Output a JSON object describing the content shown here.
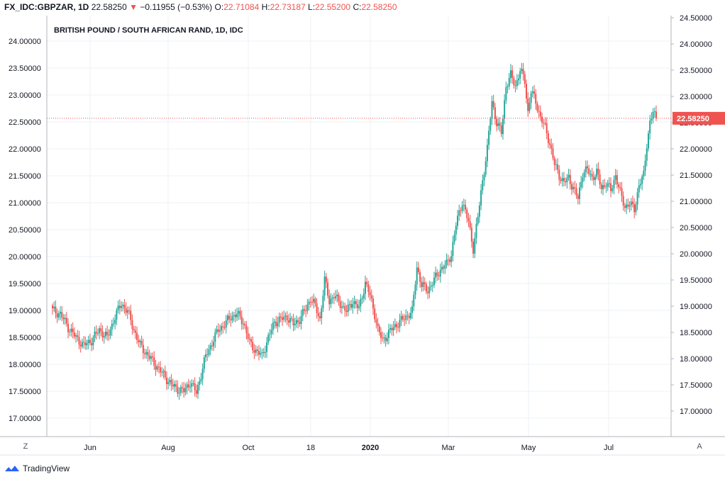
{
  "header": {
    "symbol": "FX_IDC:GBPZAR, 1D",
    "last": "22.58250",
    "change_arrow": "▼",
    "change": "−0.11955 (−0.53%)",
    "o_label": "O:",
    "o_value": "22.71084",
    "h_label": "H:",
    "h_value": "22.73187",
    "l_label": "L:",
    "l_value": "22.55200",
    "c_label": "C:",
    "c_value": "22.58250"
  },
  "brand": "TradingView",
  "buttons": {
    "left": "Z",
    "right": "A"
  },
  "colors": {
    "up": "#26a69a",
    "down": "#ef5350",
    "grid": "#e9ecf1",
    "axis_text": "#131722"
  },
  "chart_data": {
    "type": "candlestick",
    "title": "BRITISH POUND / SOUTH AFRICAN RAND, 1D, IDC",
    "last_price_label": "22.58250",
    "x_ticks": [
      "Jun",
      "Aug",
      "Oct",
      "18",
      "2020",
      "Mar",
      "May",
      "Jul"
    ],
    "left_axis": {
      "ticks": [
        "17.00000",
        "17.50000",
        "18.00000",
        "18.50000",
        "19.00000",
        "19.50000",
        "20.00000",
        "20.50000",
        "21.00000",
        "21.50000",
        "22.00000",
        "22.50000",
        "23.00000",
        "23.50000",
        "24.00000"
      ],
      "range": [
        16.6,
        24.4
      ]
    },
    "right_axis": {
      "ticks": [
        "17.00000",
        "17.50000",
        "18.00000",
        "18.50000",
        "19.00000",
        "19.50000",
        "20.00000",
        "20.50000",
        "21.00000",
        "21.50000",
        "22.00000",
        "22.50000",
        "23.00000",
        "23.50000",
        "24.00000",
        "24.50000"
      ],
      "range": [
        16.45,
        24.55
      ]
    },
    "close_series": [
      [
        0,
        18.92
      ],
      [
        5,
        18.85
      ],
      [
        10,
        18.6
      ],
      [
        15,
        18.4
      ],
      [
        20,
        18.25
      ],
      [
        25,
        18.35
      ],
      [
        30,
        18.55
      ],
      [
        35,
        18.4
      ],
      [
        40,
        18.8
      ],
      [
        44,
        19.05
      ],
      [
        48,
        18.9
      ],
      [
        52,
        18.55
      ],
      [
        56,
        18.25
      ],
      [
        60,
        18.1
      ],
      [
        64,
        17.95
      ],
      [
        68,
        17.8
      ],
      [
        72,
        17.65
      ],
      [
        76,
        17.5
      ],
      [
        80,
        17.42
      ],
      [
        84,
        17.38
      ],
      [
        88,
        17.55
      ],
      [
        92,
        17.35
      ],
      [
        95,
        17.7
      ],
      [
        98,
        18.05
      ],
      [
        102,
        18.3
      ],
      [
        106,
        18.55
      ],
      [
        110,
        18.65
      ],
      [
        114,
        18.8
      ],
      [
        118,
        18.85
      ],
      [
        122,
        18.7
      ],
      [
        126,
        18.3
      ],
      [
        130,
        18.15
      ],
      [
        134,
        18.05
      ],
      [
        138,
        18.4
      ],
      [
        142,
        18.7
      ],
      [
        146,
        18.75
      ],
      [
        150,
        18.8
      ],
      [
        154,
        18.65
      ],
      [
        158,
        18.75
      ],
      [
        162,
        18.95
      ],
      [
        165,
        19.15
      ],
      [
        168,
        19.0
      ],
      [
        171,
        18.75
      ],
      [
        174,
        19.5
      ],
      [
        177,
        19.1
      ],
      [
        180,
        19.2
      ],
      [
        184,
        19.05
      ],
      [
        188,
        18.9
      ],
      [
        192,
        19.1
      ],
      [
        196,
        18.95
      ],
      [
        200,
        19.45
      ],
      [
        203,
        19.2
      ],
      [
        206,
        18.85
      ],
      [
        208,
        18.55
      ],
      [
        211,
        18.35
      ],
      [
        214,
        18.45
      ],
      [
        218,
        18.6
      ],
      [
        222,
        18.7
      ],
      [
        226,
        18.8
      ],
      [
        230,
        18.9
      ],
      [
        233,
        19.75
      ],
      [
        236,
        19.4
      ],
      [
        240,
        19.3
      ],
      [
        244,
        19.5
      ],
      [
        248,
        19.7
      ],
      [
        252,
        19.8
      ],
      [
        255,
        20.0
      ],
      [
        258,
        20.55
      ],
      [
        262,
        21.0
      ],
      [
        266,
        20.6
      ],
      [
        269,
        20.1
      ],
      [
        272,
        20.7
      ],
      [
        275,
        21.4
      ],
      [
        278,
        22.0
      ],
      [
        281,
        22.9
      ],
      [
        284,
        22.5
      ],
      [
        287,
        22.3
      ],
      [
        290,
        23.2
      ],
      [
        293,
        23.4
      ],
      [
        296,
        23.2
      ],
      [
        299,
        23.5
      ],
      [
        302,
        23.3
      ],
      [
        304,
        22.7
      ],
      [
        306,
        23.1
      ],
      [
        309,
        22.9
      ],
      [
        312,
        22.6
      ],
      [
        315,
        22.4
      ],
      [
        318,
        22.1
      ],
      [
        321,
        21.7
      ],
      [
        324,
        21.5
      ],
      [
        327,
        21.35
      ],
      [
        330,
        21.45
      ],
      [
        333,
        21.25
      ],
      [
        336,
        21.05
      ],
      [
        339,
        21.55
      ],
      [
        342,
        21.6
      ],
      [
        345,
        21.45
      ],
      [
        348,
        21.55
      ],
      [
        351,
        21.25
      ],
      [
        354,
        21.35
      ],
      [
        357,
        21.2
      ],
      [
        360,
        21.5
      ],
      [
        363,
        21.15
      ],
      [
        366,
        20.9
      ],
      [
        369,
        20.95
      ],
      [
        372,
        20.85
      ],
      [
        375,
        21.3
      ],
      [
        378,
        21.5
      ],
      [
        380,
        22.1
      ],
      [
        382,
        22.5
      ],
      [
        384,
        22.7
      ],
      [
        386,
        22.58
      ]
    ]
  }
}
